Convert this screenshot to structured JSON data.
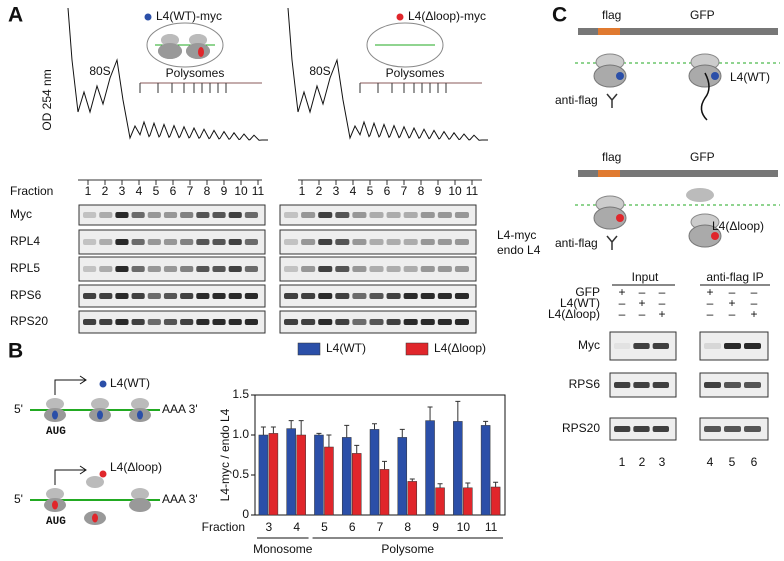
{
  "panel_a": {
    "label": "A",
    "legend": [
      "L4(WT)-myc",
      "L4(Δloop)-myc"
    ],
    "y_label": "OD 254 nm",
    "peak_label": "80S",
    "polysome_label": "Polysomes",
    "fraction_label": "Fraction",
    "fractions": [
      "1",
      "2",
      "3",
      "4",
      "5",
      "6",
      "7",
      "8",
      "9",
      "10",
      "11"
    ],
    "blots": [
      "Myc",
      "RPL4",
      "RPL5",
      "RPS6",
      "RPS20"
    ],
    "annotations": [
      "L4-myc",
      "endo L4"
    ]
  },
  "panel_b": {
    "label": "B",
    "constructs": [
      "L4(WT)",
      "L4(Δloop)"
    ],
    "five_prime": "5'",
    "three_prime": "AAA 3'",
    "start_codon": "AUG"
  },
  "chart_data": {
    "type": "bar",
    "y_label": "L4-myc / endo L4",
    "x_label": "Fraction",
    "categories": [
      "3",
      "4",
      "5",
      "6",
      "7",
      "8",
      "9",
      "10",
      "11"
    ],
    "category_groups": [
      "Monosome",
      "Polysome"
    ],
    "series": [
      {
        "name": "L4(WT)",
        "color": "#2b4fa8",
        "values": [
          1.0,
          1.08,
          1.0,
          0.97,
          1.07,
          0.97,
          1.18,
          1.17,
          1.12
        ],
        "errors": [
          0.1,
          0.1,
          0.02,
          0.15,
          0.07,
          0.1,
          0.17,
          0.25,
          0.05
        ]
      },
      {
        "name": "L4(Δloop)",
        "color": "#e0262b",
        "values": [
          1.02,
          1.0,
          0.85,
          0.77,
          0.57,
          0.42,
          0.34,
          0.34,
          0.35
        ],
        "errors": [
          0.08,
          0.18,
          0.15,
          0.1,
          0.1,
          0.03,
          0.05,
          0.06,
          0.06
        ]
      }
    ],
    "ylim": [
      0,
      1.5
    ],
    "yticks": [
      0,
      0.5,
      {
        "value": 1,
        "label": "1.0"
      },
      1.5
    ]
  },
  "panel_c": {
    "label": "C",
    "tag": "flag",
    "reporter": "GFP",
    "constructs": [
      "L4(WT)",
      "L4(Δloop)"
    ],
    "antibody": "anti-flag",
    "groups": [
      "Input",
      "anti-flag IP"
    ],
    "conditions": [
      {
        "name": "GFP",
        "marks": [
          "+",
          "–",
          "–",
          "+",
          "–",
          "–"
        ]
      },
      {
        "name": "L4(WT)",
        "marks": [
          "–",
          "+",
          "–",
          "–",
          "+",
          "–"
        ]
      },
      {
        "name": "L4(Δloop)",
        "marks": [
          "–",
          "–",
          "+",
          "–",
          "–",
          "+"
        ]
      }
    ],
    "blots": [
      "Myc",
      "RPS6",
      "RPS20"
    ],
    "lanes": [
      "1",
      "2",
      "3",
      "4",
      "5",
      "6"
    ]
  }
}
